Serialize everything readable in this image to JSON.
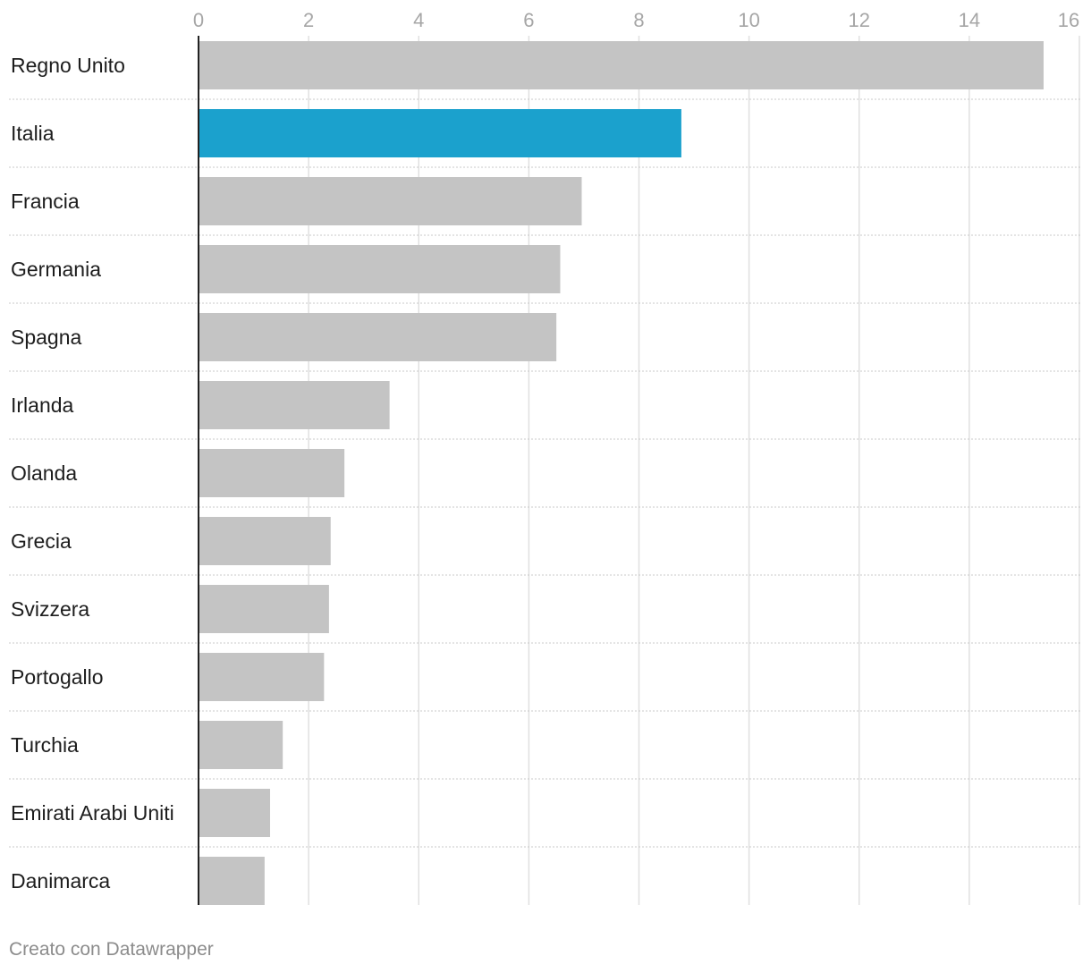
{
  "chart_data": {
    "type": "bar",
    "orientation": "horizontal",
    "categories": [
      "Regno Unito",
      "Italia",
      "Francia",
      "Germania",
      "Spagna",
      "Irlanda",
      "Olanda",
      "Grecia",
      "Svizzera",
      "Portogallo",
      "Turchia",
      "Emirati Arabi Uniti",
      "Danimarca"
    ],
    "values": [
      15.35,
      8.77,
      6.96,
      6.57,
      6.5,
      3.47,
      2.65,
      2.4,
      2.37,
      2.28,
      1.53,
      1.3,
      1.2
    ],
    "highlight": "Italia",
    "xlim": [
      0,
      16
    ],
    "x_ticks": [
      "0",
      "2",
      "4",
      "6",
      "8",
      "10",
      "12",
      "14",
      "16"
    ],
    "axis_position": "top",
    "grid": true
  },
  "colors": {
    "bar": "#c4c4c4",
    "highlight": "#1ba1cd",
    "grid": "#e0e0e0",
    "separator": "#c8c8c8",
    "axis": "#222222",
    "tick_label": "#a6a6a6",
    "label": "#1d1d1d"
  },
  "footer": {
    "credit": "Creato con Datawrapper"
  }
}
